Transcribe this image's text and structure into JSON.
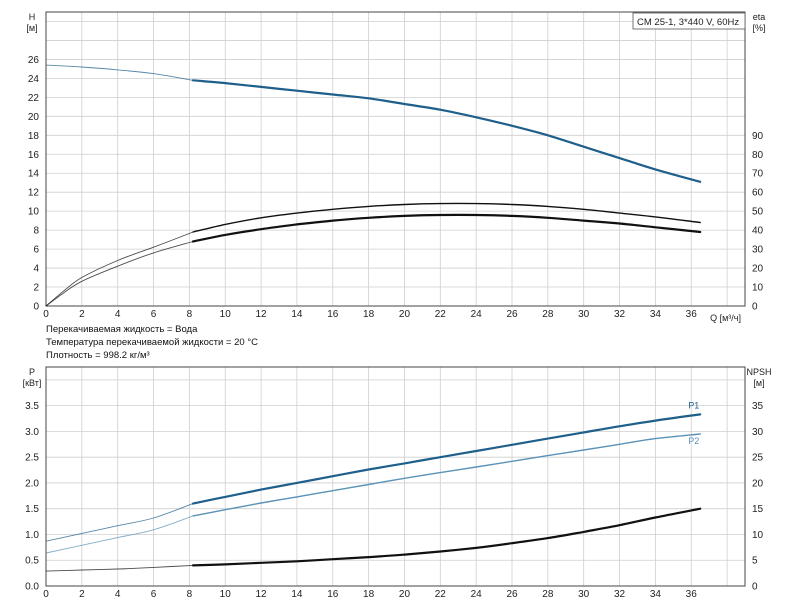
{
  "legend_label": "CM 25-1, 3*440 V, 60Hz",
  "notes": [
    "Перекачиваемая жидкость = Вода",
    "Температура перекачиваемой жидкости = 20 °C",
    "Плотность = 998.2 кг/м³"
  ],
  "colors": {
    "head": "#1f5f8b",
    "p1": "#1f5f8b",
    "p2": "#5a92b8",
    "eta": "#111111",
    "npsh": "#111111",
    "grid": "#cfcfcf"
  },
  "chart_data": [
    {
      "type": "line",
      "panel": "top",
      "x_label": "Q [м³/ч]",
      "x_ticks": [
        0,
        2,
        4,
        6,
        8,
        10,
        12,
        14,
        16,
        18,
        20,
        22,
        24,
        26,
        28,
        30,
        32,
        34,
        36
      ],
      "xlim": [
        0,
        39
      ],
      "y_left": {
        "label_line1": "H",
        "label_line2": "[м]",
        "ticks": [
          0,
          2,
          4,
          6,
          8,
          10,
          12,
          14,
          16,
          18,
          20,
          22,
          24,
          26
        ],
        "lim": [
          0,
          31
        ]
      },
      "y_right": {
        "label_line1": "eta",
        "label_line2": "[%]",
        "ticks": [
          0,
          10,
          20,
          30,
          40,
          50,
          60,
          70,
          80,
          90
        ],
        "lim": [
          0,
          155
        ]
      },
      "series": [
        {
          "key": "head",
          "axis": "left",
          "width": 2.2,
          "operating_from": 8.2,
          "x": [
            0,
            2,
            4,
            6,
            8.2,
            10,
            12,
            14,
            16,
            18,
            20,
            22,
            24,
            26,
            28,
            30,
            32,
            34,
            36.5
          ],
          "y": [
            25.4,
            25.2,
            24.9,
            24.5,
            23.8,
            23.5,
            23.1,
            22.7,
            22.3,
            21.9,
            21.3,
            20.7,
            19.9,
            19.0,
            18.0,
            16.8,
            15.6,
            14.4,
            13.1
          ]
        },
        {
          "key": "eta_upper",
          "axis": "right",
          "width": 1.4,
          "operating_from": 8.2,
          "x": [
            0,
            1,
            2,
            4,
            6,
            8.2,
            10,
            12,
            14,
            16,
            18,
            20,
            22,
            24,
            26,
            28,
            30,
            32,
            34,
            36.5
          ],
          "y": [
            0,
            8,
            15,
            24,
            31,
            39,
            43,
            46.5,
            49,
            51,
            52.5,
            53.5,
            54,
            54,
            53.5,
            52.5,
            51,
            49,
            47,
            44
          ]
        },
        {
          "key": "eta_lower",
          "axis": "right",
          "width": 2.2,
          "operating_from": 8.2,
          "x": [
            0,
            1,
            2,
            4,
            6,
            8.2,
            10,
            12,
            14,
            16,
            18,
            20,
            22,
            24,
            26,
            28,
            30,
            32,
            34,
            36.5
          ],
          "y": [
            0,
            7,
            13,
            21,
            28,
            34,
            37.5,
            40.5,
            43,
            45,
            46.5,
            47.5,
            48,
            48,
            47.5,
            46.5,
            45,
            43.5,
            41.5,
            39
          ]
        }
      ]
    },
    {
      "type": "line",
      "panel": "bottom",
      "x_ticks": [
        0,
        2,
        4,
        6,
        8,
        10,
        12,
        14,
        16,
        18,
        20,
        22,
        24,
        26,
        28,
        30,
        32,
        34,
        36
      ],
      "xlim": [
        0,
        39
      ],
      "y_left": {
        "label_line1": "P",
        "label_line2": "[кВт]",
        "ticks": [
          0.0,
          0.5,
          1.0,
          1.5,
          2.0,
          2.5,
          3.0,
          3.5
        ],
        "tick_labels": [
          "0.0",
          "0.5",
          "1.0",
          "1.5",
          "2.0",
          "2.5",
          "3.0",
          "3.5"
        ],
        "lim": [
          0,
          4.25
        ]
      },
      "y_right": {
        "label_line1": "NPSH",
        "label_line2": "[м]",
        "ticks": [
          0,
          5,
          10,
          15,
          20,
          25,
          30,
          35
        ],
        "lim": [
          0,
          42.5
        ]
      },
      "series": [
        {
          "key": "p1",
          "name": "P1",
          "axis": "left",
          "width": 2.2,
          "operating_from": 8.2,
          "x": [
            0,
            2,
            4,
            6,
            8.2,
            10,
            12,
            14,
            16,
            18,
            20,
            22,
            24,
            26,
            28,
            30,
            32,
            34,
            36.5
          ],
          "y": [
            0.87,
            1.02,
            1.17,
            1.32,
            1.6,
            1.73,
            1.87,
            2.0,
            2.13,
            2.26,
            2.38,
            2.5,
            2.62,
            2.74,
            2.86,
            2.98,
            3.1,
            3.21,
            3.33
          ]
        },
        {
          "key": "p2",
          "name": "P2",
          "axis": "left",
          "width": 1.4,
          "operating_from": 8.2,
          "x": [
            0,
            2,
            4,
            6,
            8.2,
            10,
            12,
            14,
            16,
            18,
            20,
            22,
            24,
            26,
            28,
            30,
            32,
            34,
            36.5
          ],
          "y": [
            0.64,
            0.79,
            0.94,
            1.09,
            1.36,
            1.48,
            1.61,
            1.73,
            1.85,
            1.97,
            2.09,
            2.2,
            2.31,
            2.42,
            2.53,
            2.64,
            2.75,
            2.86,
            2.95
          ]
        },
        {
          "key": "npsh",
          "axis": "right",
          "width": 2.2,
          "operating_from": 8.2,
          "x": [
            0,
            2,
            4,
            6,
            8.2,
            10,
            12,
            14,
            16,
            18,
            20,
            22,
            24,
            26,
            28,
            30,
            32,
            34,
            36.5
          ],
          "y": [
            2.9,
            3.1,
            3.3,
            3.6,
            4.0,
            4.2,
            4.5,
            4.8,
            5.2,
            5.6,
            6.1,
            6.7,
            7.4,
            8.3,
            9.3,
            10.5,
            11.8,
            13.3,
            15.0
          ]
        }
      ]
    }
  ]
}
